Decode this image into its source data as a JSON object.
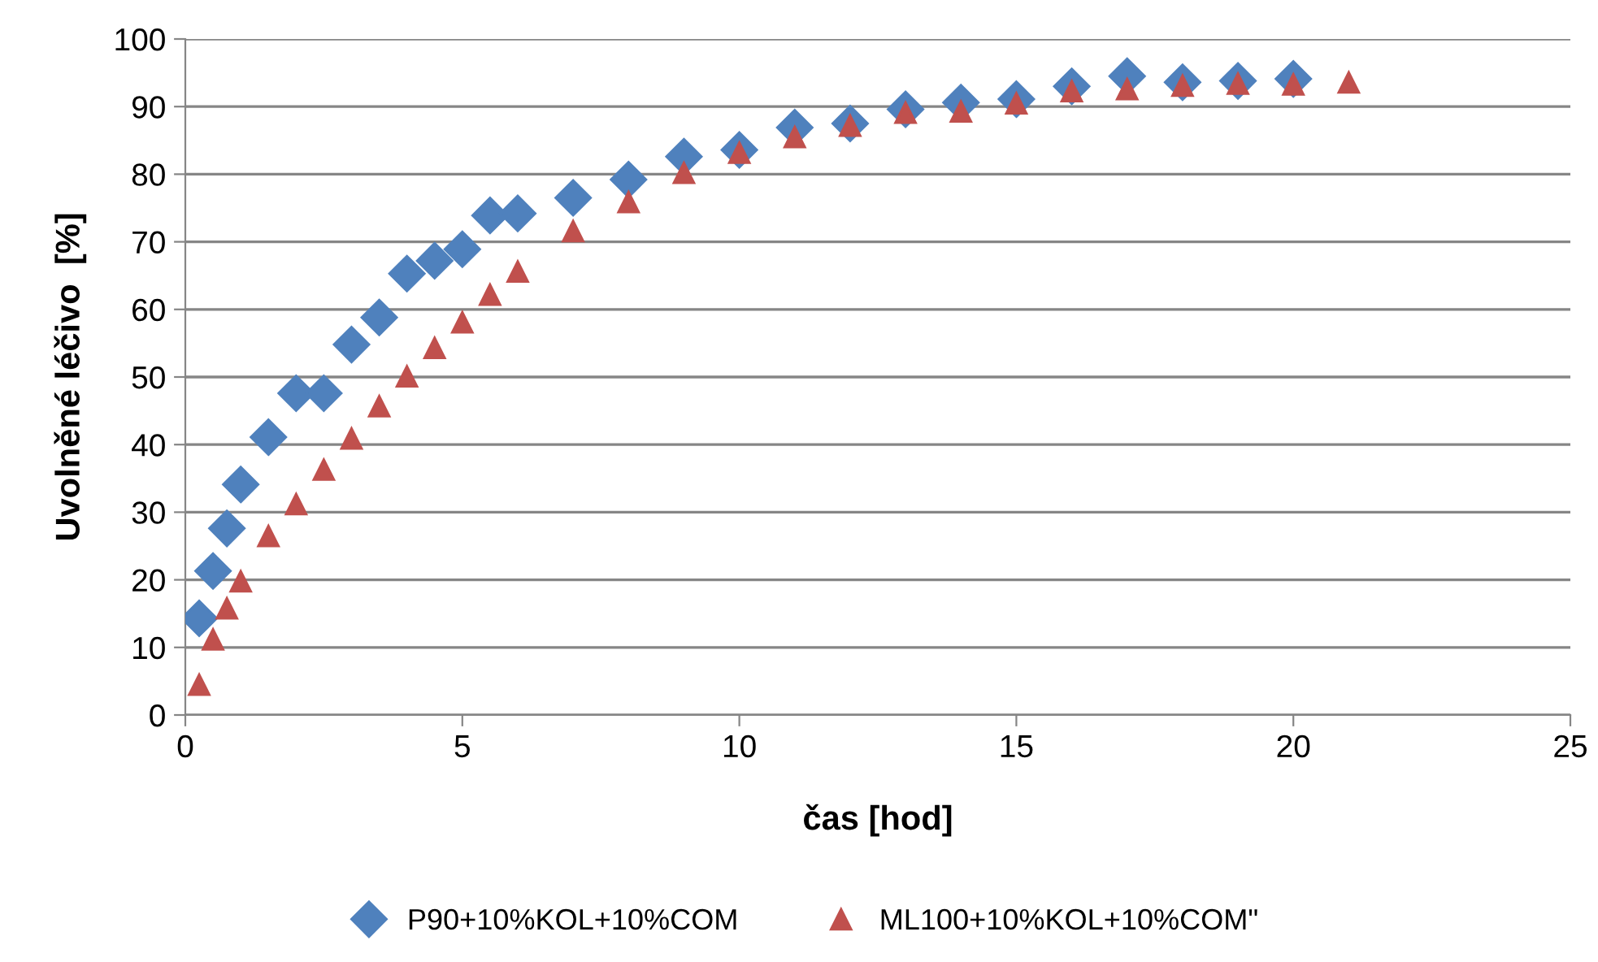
{
  "chart_data": {
    "type": "scatter",
    "xlabel": "čas [hod]",
    "ylabel": "Uvolněné léčivo  [%]",
    "xlim": [
      0,
      25
    ],
    "xticks": [
      0,
      5,
      10,
      15,
      20,
      25
    ],
    "ylim": [
      0,
      100
    ],
    "yticks": [
      0,
      10,
      20,
      30,
      40,
      50,
      60,
      70,
      80,
      90,
      100
    ],
    "grid": "y",
    "legend": "bottom",
    "series": [
      {
        "name": "P90+10%KOL+10%COM",
        "color": "#4f81bd",
        "marker": "diamond",
        "x": [
          0.25,
          0.5,
          0.75,
          1,
          1.5,
          2,
          2.5,
          3,
          3.5,
          4,
          4.5,
          5,
          5.5,
          6,
          7,
          8,
          9,
          10,
          11,
          12,
          13,
          14,
          15,
          16,
          17,
          18,
          19,
          20
        ],
        "values": [
          14.3,
          21.3,
          27.6,
          34.1,
          41.1,
          47.6,
          47.6,
          54.8,
          58.8,
          65.3,
          67.2,
          68.9,
          73.9,
          74.2,
          76.5,
          79.2,
          82.6,
          83.6,
          86.9,
          87.5,
          89.6,
          90.6,
          91.1,
          93,
          94.5,
          93.6,
          93.8,
          94.1
        ]
      },
      {
        "name": "ML100+10%KOL+10%COM\"",
        "color": "#c0504d",
        "marker": "triangle",
        "x": [
          0.25,
          0.5,
          0.75,
          1,
          1.5,
          2,
          2.5,
          3,
          3.5,
          4,
          4.5,
          5,
          5.5,
          6,
          7,
          8,
          9,
          10,
          11,
          12,
          13,
          14,
          15,
          16,
          17,
          18,
          19,
          20,
          21
        ],
        "values": [
          4.5,
          11.2,
          15.8,
          19.8,
          26.5,
          31.2,
          36.3,
          40.9,
          45.7,
          50.1,
          54.3,
          58.1,
          62.2,
          65.6,
          71.6,
          75.9,
          80.2,
          83.2,
          85.5,
          87.2,
          89.1,
          89.3,
          90.5,
          92.3,
          92.6,
          93.1,
          93.4,
          93.3,
          93.6
        ]
      }
    ]
  }
}
